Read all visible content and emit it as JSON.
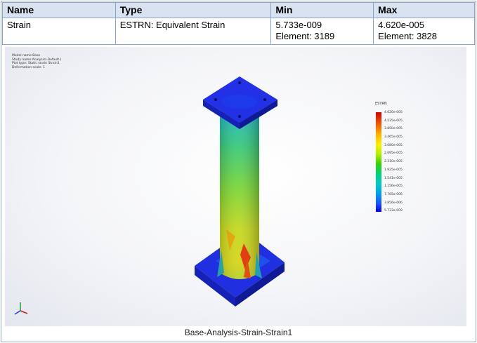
{
  "table": {
    "headers": [
      "Name",
      "Type",
      "Min",
      "Max"
    ],
    "row": {
      "name": "Strain",
      "type": "ESTRN: Equivalent Strain",
      "min_value": "5.733e-009",
      "min_element": "Element: 3189",
      "max_value": "4.620e-005",
      "max_element": "Element: 3828"
    }
  },
  "plot_info": [
    "Model name:Base",
    "Study name:Analysis(-Default-)",
    "Plot type: Static strain Strain1",
    "Deformation scale: 1"
  ],
  "legend": {
    "title": "ESTRN",
    "labels": [
      "4.620e-005",
      "4.235e-005",
      "3.850e-005",
      "3.465e-005",
      "3.080e-005",
      "2.695e-005",
      "2.310e-005",
      "1.925e-005",
      "1.541e-005",
      "1.156e-005",
      "7.705e-006",
      "3.856e-006",
      "5.733e-009"
    ]
  },
  "caption": "Base-Analysis-Strain-Strain1",
  "colors": {
    "header_bg": "#d9e2f0",
    "border": "#8fa4c8",
    "plate": "#1c2ad8"
  }
}
